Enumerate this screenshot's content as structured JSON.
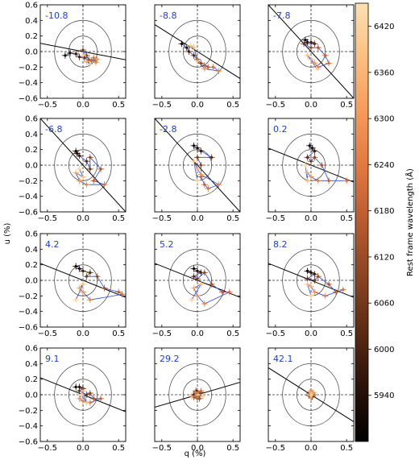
{
  "chart_data": {
    "type": "scatter",
    "grid": false,
    "xlabel": "q (%)",
    "ylabel": "u (%)",
    "xlim": [
      -0.6,
      0.6
    ],
    "ylim": [
      -0.6,
      0.6
    ],
    "xticks": [
      -0.5,
      0.0,
      0.5
    ],
    "xtick_labels": [
      "−0.5",
      "0.0",
      "0.5"
    ],
    "yticks": [
      -0.6,
      -0.4,
      -0.2,
      0.0,
      0.2,
      0.4,
      0.6
    ],
    "ytick_labels": [
      "−0.6",
      "−0.4",
      "−0.2",
      "0.0",
      "0.2",
      "0.4",
      "0.6"
    ],
    "circle_radii": [
      0.2,
      0.4
    ],
    "colorbar": {
      "label": "Rest frame wavelength (Å)",
      "range": [
        5880,
        6450
      ],
      "ticks": [
        5940,
        6000,
        6060,
        6120,
        6180,
        6240,
        6300,
        6360,
        6420
      ],
      "colormap": [
        "#000000",
        "#2a1208",
        "#5a2a14",
        "#8a4422",
        "#b85a30",
        "#e07840",
        "#f59a5a",
        "#fbbf80",
        "#fde0b4"
      ]
    },
    "panels": [
      {
        "epoch": "-10.8",
        "angle": -10,
        "points": [
          [
            -0.25,
            -0.05,
            5900
          ],
          [
            -0.18,
            -0.02,
            5930
          ],
          [
            -0.1,
            -0.03,
            5960
          ],
          [
            -0.05,
            -0.07,
            5990
          ],
          [
            0.02,
            -0.08,
            6020
          ],
          [
            0.0,
            0.02,
            6060
          ],
          [
            0.05,
            -0.05,
            6100
          ],
          [
            0.08,
            -0.1,
            6140
          ],
          [
            0.12,
            -0.12,
            6180
          ],
          [
            0.15,
            -0.08,
            6220
          ],
          [
            0.18,
            -0.14,
            6260
          ],
          [
            0.2,
            -0.1,
            6300
          ],
          [
            0.05,
            -0.13,
            6340
          ],
          [
            0.1,
            -0.16,
            6380
          ],
          [
            0.0,
            -0.05,
            6420
          ]
        ]
      },
      {
        "epoch": "-8.8",
        "angle": -30,
        "points": [
          [
            -0.22,
            0.1,
            5900
          ],
          [
            -0.15,
            0.05,
            5940
          ],
          [
            -0.12,
            0.0,
            5980
          ],
          [
            -0.05,
            -0.05,
            6020
          ],
          [
            0.0,
            -0.1,
            6060
          ],
          [
            0.05,
            -0.15,
            6100
          ],
          [
            0.1,
            -0.18,
            6140
          ],
          [
            0.15,
            -0.2,
            6180
          ],
          [
            0.22,
            -0.2,
            6220
          ],
          [
            0.3,
            -0.25,
            6260
          ],
          [
            0.1,
            -0.22,
            6300
          ],
          [
            0.0,
            -0.12,
            6340
          ],
          [
            -0.05,
            0.05,
            6380
          ],
          [
            -0.1,
            0.08,
            6420
          ]
        ]
      },
      {
        "epoch": "-7.8",
        "angle": -45,
        "points": [
          [
            -0.08,
            0.15,
            5900
          ],
          [
            -0.05,
            0.12,
            5940
          ],
          [
            0.0,
            0.12,
            5980
          ],
          [
            0.05,
            0.1,
            6020
          ],
          [
            -0.1,
            0.1,
            6060
          ],
          [
            0.0,
            0.05,
            6100
          ],
          [
            0.1,
            0.05,
            6140
          ],
          [
            0.2,
            -0.05,
            6180
          ],
          [
            0.25,
            -0.15,
            6220
          ],
          [
            0.1,
            -0.2,
            6260
          ],
          [
            0.05,
            -0.15,
            6300
          ],
          [
            0.0,
            -0.1,
            6340
          ],
          [
            -0.05,
            -0.05,
            6380
          ],
          [
            0.08,
            -0.22,
            6420
          ]
        ]
      },
      {
        "epoch": "-6.8",
        "angle": -45,
        "points": [
          [
            -0.1,
            0.18,
            5900
          ],
          [
            -0.08,
            0.15,
            5940
          ],
          [
            -0.05,
            0.12,
            5980
          ],
          [
            0.05,
            0.05,
            6020
          ],
          [
            0.1,
            -0.05,
            6060
          ],
          [
            0.1,
            0.1,
            6100
          ],
          [
            0.25,
            -0.05,
            6140
          ],
          [
            0.15,
            -0.2,
            6180
          ],
          [
            0.3,
            -0.25,
            6220
          ],
          [
            0.05,
            -0.25,
            6260
          ],
          [
            -0.05,
            -0.2,
            6300
          ],
          [
            -0.1,
            -0.1,
            6340
          ],
          [
            0.0,
            -0.15,
            6380
          ],
          [
            -0.05,
            -0.05,
            6420
          ]
        ]
      },
      {
        "epoch": "-2.8",
        "angle": -45,
        "points": [
          [
            -0.05,
            0.25,
            5900
          ],
          [
            0.0,
            0.22,
            5940
          ],
          [
            0.05,
            0.18,
            5980
          ],
          [
            0.2,
            0.1,
            6020
          ],
          [
            0.0,
            0.1,
            6060
          ],
          [
            0.05,
            0.0,
            6100
          ],
          [
            0.05,
            -0.15,
            6140
          ],
          [
            0.1,
            -0.25,
            6180
          ],
          [
            0.15,
            -0.3,
            6220
          ],
          [
            0.3,
            -0.25,
            6260
          ],
          [
            0.05,
            -0.12,
            6300
          ],
          [
            0.0,
            -0.05,
            6340
          ],
          [
            -0.05,
            0.05,
            6380
          ],
          [
            0.0,
            -0.2,
            6420
          ]
        ]
      },
      {
        "epoch": "0.2",
        "angle": -20,
        "points": [
          [
            -0.02,
            0.25,
            5900
          ],
          [
            0.02,
            0.22,
            5940
          ],
          [
            0.05,
            0.18,
            5980
          ],
          [
            -0.05,
            0.1,
            6020
          ],
          [
            0.0,
            0.05,
            6060
          ],
          [
            0.05,
            0.1,
            6100
          ],
          [
            0.15,
            0.0,
            6140
          ],
          [
            0.25,
            -0.2,
            6180
          ],
          [
            0.5,
            -0.2,
            6220
          ],
          [
            0.1,
            -0.2,
            6260
          ],
          [
            0.0,
            -0.15,
            6300
          ],
          [
            -0.05,
            -0.1,
            6340
          ],
          [
            -0.05,
            -0.2,
            6380
          ],
          [
            -0.08,
            0.0,
            6420
          ]
        ]
      },
      {
        "epoch": "4.2",
        "angle": -20,
        "points": [
          [
            -0.1,
            0.18,
            5900
          ],
          [
            -0.05,
            0.15,
            5940
          ],
          [
            0.0,
            0.12,
            5980
          ],
          [
            0.1,
            0.1,
            6020
          ],
          [
            0.05,
            0.05,
            6060
          ],
          [
            0.2,
            0.05,
            6100
          ],
          [
            0.3,
            -0.1,
            6140
          ],
          [
            0.5,
            -0.15,
            6180
          ],
          [
            0.55,
            -0.18,
            6220
          ],
          [
            0.1,
            -0.25,
            6260
          ],
          [
            0.0,
            -0.15,
            6300
          ],
          [
            -0.05,
            -0.1,
            6340
          ],
          [
            0.0,
            -0.05,
            6380
          ],
          [
            -0.1,
            -0.25,
            6420
          ]
        ]
      },
      {
        "epoch": "5.2",
        "angle": -20,
        "points": [
          [
            -0.05,
            0.15,
            5900
          ],
          [
            0.0,
            0.12,
            5940
          ],
          [
            0.05,
            0.1,
            5980
          ],
          [
            -0.05,
            0.05,
            6020
          ],
          [
            0.0,
            0.02,
            6060
          ],
          [
            0.1,
            0.1,
            6100
          ],
          [
            0.2,
            -0.05,
            6140
          ],
          [
            0.35,
            -0.15,
            6180
          ],
          [
            0.45,
            -0.15,
            6220
          ],
          [
            0.1,
            -0.3,
            6260
          ],
          [
            0.0,
            -0.2,
            6300
          ],
          [
            -0.05,
            -0.1,
            6340
          ],
          [
            0.05,
            -0.05,
            6380
          ],
          [
            -0.08,
            -0.25,
            6420
          ]
        ]
      },
      {
        "epoch": "8.2",
        "angle": -20,
        "points": [
          [
            -0.05,
            0.12,
            5900
          ],
          [
            0.0,
            0.1,
            5940
          ],
          [
            0.05,
            0.08,
            5980
          ],
          [
            -0.05,
            0.02,
            6020
          ],
          [
            0.05,
            0.0,
            6060
          ],
          [
            0.1,
            0.05,
            6100
          ],
          [
            0.25,
            -0.05,
            6140
          ],
          [
            0.35,
            -0.15,
            6180
          ],
          [
            0.45,
            -0.12,
            6220
          ],
          [
            0.2,
            -0.2,
            6260
          ],
          [
            0.05,
            -0.15,
            6300
          ],
          [
            0.0,
            -0.08,
            6340
          ],
          [
            -0.05,
            -0.05,
            6380
          ],
          [
            0.0,
            -0.2,
            6420
          ]
        ]
      },
      {
        "epoch": "9.1",
        "angle": -20,
        "points": [
          [
            -0.1,
            0.1,
            5900
          ],
          [
            -0.05,
            0.1,
            5940
          ],
          [
            0.0,
            0.08,
            5980
          ],
          [
            -0.05,
            0.05,
            6020
          ],
          [
            0.05,
            0.0,
            6060
          ],
          [
            0.1,
            0.02,
            6100
          ],
          [
            0.15,
            -0.05,
            6140
          ],
          [
            0.25,
            -0.05,
            6180
          ],
          [
            0.1,
            -0.1,
            6220
          ],
          [
            0.0,
            -0.08,
            6260
          ],
          [
            -0.05,
            -0.05,
            6300
          ],
          [
            0.0,
            0.05,
            6340
          ],
          [
            0.05,
            -0.1,
            6380
          ],
          [
            -0.02,
            0.0,
            6420
          ]
        ]
      },
      {
        "epoch": "29.2",
        "angle": 15,
        "points": [
          [
            -0.05,
            0.0,
            5900
          ],
          [
            0.0,
            0.02,
            5940
          ],
          [
            0.02,
            -0.02,
            5980
          ],
          [
            -0.02,
            0.05,
            6020
          ],
          [
            0.05,
            0.03,
            6060
          ],
          [
            0.03,
            -0.05,
            6100
          ],
          [
            -0.05,
            -0.03,
            6140
          ],
          [
            0.0,
            -0.05,
            6180
          ],
          [
            0.05,
            0.05,
            6220
          ],
          [
            -0.03,
            0.03,
            6260
          ],
          [
            0.02,
            0.0,
            6300
          ],
          [
            -0.08,
            -0.02,
            6340
          ],
          [
            0.0,
            0.0,
            6380
          ],
          [
            0.08,
            -0.02,
            6420
          ]
        ]
      },
      {
        "epoch": "42.1",
        "angle": -30,
        "points": [
          [
            0.0,
            0.0,
            5900
          ],
          [
            0.02,
            -0.02,
            5940
          ],
          [
            -0.02,
            0.02,
            5980
          ],
          [
            0.03,
            0.0,
            6020
          ],
          [
            0.0,
            0.03,
            6060
          ],
          [
            -0.03,
            -0.01,
            6100
          ],
          [
            0.01,
            -0.03,
            6140
          ],
          [
            0.02,
            0.02,
            6180
          ],
          [
            -0.01,
            0.0,
            6220
          ],
          [
            0.0,
            -0.04,
            6260
          ],
          [
            0.03,
            0.03,
            6300
          ],
          [
            -0.02,
            0.04,
            6340
          ],
          [
            0.01,
            0.01,
            6380
          ],
          [
            0.0,
            -0.01,
            6420
          ]
        ]
      }
    ]
  }
}
